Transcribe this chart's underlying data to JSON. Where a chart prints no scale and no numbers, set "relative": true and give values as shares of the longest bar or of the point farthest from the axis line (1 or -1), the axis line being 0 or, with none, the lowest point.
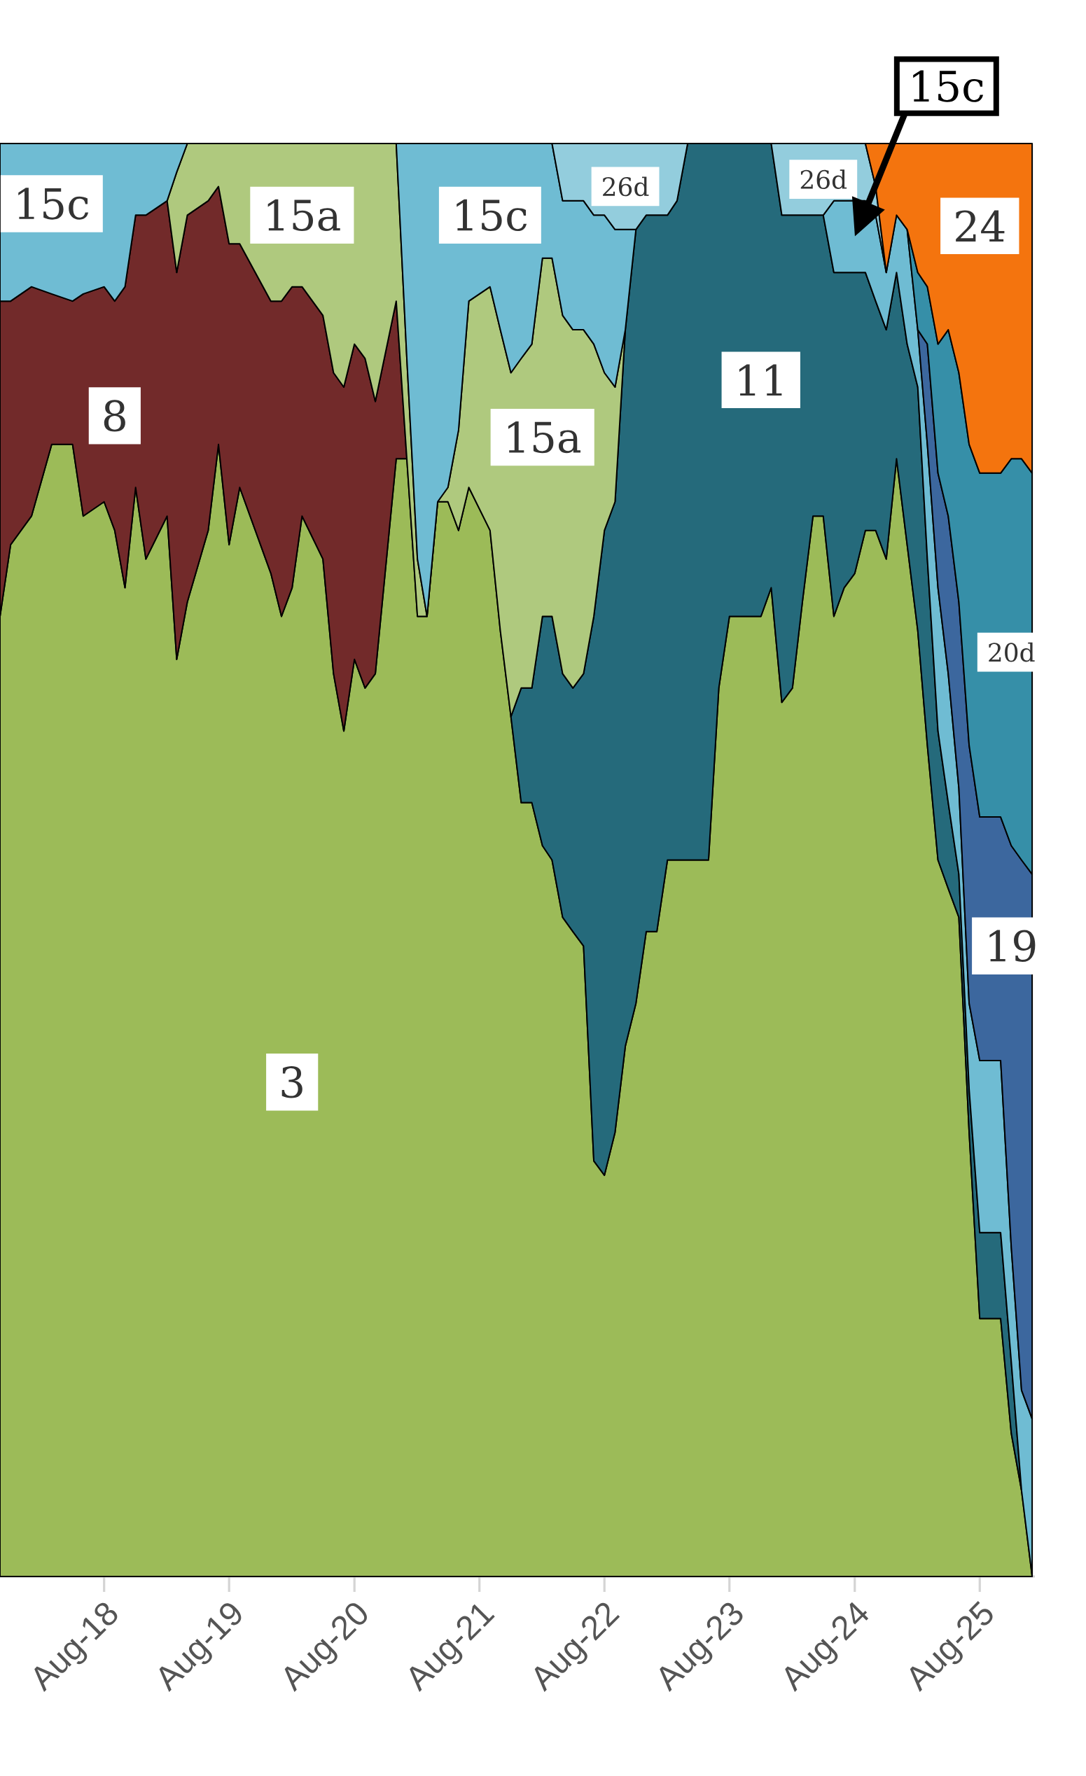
{
  "chart_data": {
    "type": "area",
    "stacked": true,
    "relative": true,
    "x": [
      "2017-10",
      "2017-11",
      "2018-01",
      "2018-03",
      "2018-05",
      "2018-06",
      "2018-08",
      "2018-09",
      "2018-10",
      "2018-11",
      "2018-12",
      "2019-02",
      "2019-03",
      "2019-04",
      "2019-06",
      "2019-07",
      "2019-08",
      "2019-09",
      "2019-12",
      "2020-01",
      "2020-02",
      "2020-03",
      "2020-05",
      "2020-06",
      "2020-07",
      "2020-08",
      "2020-09",
      "2020-10",
      "2020-12",
      "2021-01",
      "2021-02",
      "2021-03",
      "2021-04",
      "2021-05",
      "2021-06",
      "2021-07",
      "2021-09",
      "2021-10",
      "2021-11",
      "2021-12",
      "2022-01",
      "2022-02",
      "2022-03",
      "2022-04",
      "2022-05",
      "2022-06",
      "2022-07",
      "2022-08",
      "2022-09",
      "2022-10",
      "2022-11",
      "2022-12",
      "2023-01",
      "2023-02",
      "2023-03",
      "2023-04",
      "2023-06",
      "2023-07",
      "2023-08",
      "2023-11",
      "2023-12",
      "2024-01",
      "2024-02",
      "2024-03",
      "2024-04",
      "2024-05",
      "2024-06",
      "2024-07",
      "2024-08",
      "2024-09",
      "2024-10",
      "2024-11",
      "2024-12",
      "2025-01",
      "2025-02",
      "2025-03",
      "2025-04",
      "2025-05",
      "2025-06",
      "2025-07",
      "2025-08",
      "2025-10",
      "2025-11",
      "2025-12",
      "2026-01"
    ],
    "series": [
      {
        "name": "3",
        "color": "#9cbb58",
        "values": [
          0.67,
          0.72,
          0.74,
          0.79,
          0.79,
          0.74,
          0.75,
          0.73,
          0.69,
          0.76,
          0.71,
          0.74,
          0.64,
          0.68,
          0.73,
          0.79,
          0.72,
          0.76,
          0.7,
          0.67,
          0.69,
          0.74,
          0.71,
          0.63,
          0.59,
          0.64,
          0.62,
          0.63,
          0.78,
          0.78,
          0.67,
          0.67,
          0.75,
          0.75,
          0.73,
          0.76,
          0.73,
          0.66,
          0.6,
          0.54,
          0.54,
          0.51,
          0.5,
          0.46,
          0.45,
          0.44,
          0.29,
          0.28,
          0.31,
          0.37,
          0.4,
          0.45,
          0.45,
          0.5,
          0.5,
          0.5,
          0.5,
          0.62,
          0.67,
          0.67,
          0.69,
          0.61,
          0.62,
          0.68,
          0.74,
          0.74,
          0.67,
          0.69,
          0.7,
          0.73,
          0.73,
          0.71,
          0.78,
          0.72,
          0.66,
          0.58,
          0.5,
          0.48,
          0.46,
          0.31,
          0.18,
          0.18,
          0.1,
          0.06,
          0
        ]
      },
      {
        "name": "8",
        "color": "#722a2a",
        "values": [
          0.22,
          0.17,
          0.16,
          0.105,
          0.1,
          0.155,
          0.15,
          0.16,
          0.21,
          0.19,
          0.24,
          0.22,
          0.27,
          0.27,
          0.23,
          0.18,
          0.21,
          0.17,
          0.19,
          0.22,
          0.21,
          0.16,
          0.17,
          0.21,
          0.24,
          0.22,
          0.23,
          0.19,
          0.11,
          0,
          null,
          null,
          null,
          null,
          null,
          null,
          null,
          null,
          null,
          null,
          null,
          null,
          null,
          null,
          null,
          null,
          null,
          null,
          null,
          null,
          null,
          null,
          null,
          null,
          null,
          null,
          null,
          null,
          null,
          null,
          null,
          null,
          null,
          null,
          null,
          null,
          null,
          null,
          null,
          null,
          null,
          null,
          null,
          null,
          null,
          null,
          null,
          null,
          null,
          null,
          null,
          null,
          null,
          null,
          null
        ]
      },
      {
        "name": "11",
        "color": "#256a7b",
        "values": [
          null,
          null,
          null,
          null,
          null,
          null,
          null,
          null,
          null,
          null,
          null,
          null,
          null,
          null,
          null,
          null,
          null,
          null,
          null,
          null,
          null,
          null,
          null,
          null,
          null,
          null,
          null,
          null,
          null,
          null,
          null,
          null,
          null,
          null,
          null,
          null,
          null,
          null,
          0,
          0.08,
          0.08,
          0.16,
          0.17,
          0.17,
          0.17,
          0.19,
          0.38,
          0.45,
          0.44,
          0.5,
          0.54,
          0.5,
          0.5,
          0.45,
          0.46,
          0.5,
          0.5,
          0.38,
          0.33,
          0.33,
          0.31,
          0.34,
          0.33,
          0.27,
          0.21,
          0.21,
          0.24,
          0.22,
          0.21,
          0.18,
          0.16,
          0.16,
          0.13,
          0.14,
          0.17,
          0.13,
          0.09,
          0.06,
          0.03,
          0.03,
          0.06,
          0.06,
          0.05,
          0,
          null
        ]
      },
      {
        "name": "15a",
        "color": "#afc97e",
        "values": [
          null,
          null,
          null,
          null,
          null,
          null,
          null,
          null,
          null,
          null,
          null,
          0,
          0.07,
          0.05,
          0.04,
          0.03,
          0.07,
          0.07,
          0.11,
          0.11,
          0.1,
          0.1,
          0.12,
          0.16,
          0.17,
          0.14,
          0.15,
          0.18,
          0.11,
          0.07,
          0.04,
          0,
          0,
          0.01,
          0.07,
          0.13,
          0.17,
          0.21,
          0.24,
          0.23,
          0.24,
          0.25,
          0.25,
          0.25,
          0.25,
          0.24,
          0.19,
          0.11,
          0.08,
          0,
          null,
          null,
          null,
          null,
          null,
          null,
          null,
          null,
          null,
          null,
          null,
          null,
          null,
          null,
          null,
          null,
          null,
          null,
          null,
          null,
          null,
          null,
          null,
          null,
          null,
          null,
          null,
          null,
          null,
          null,
          null,
          null,
          null,
          null,
          null
        ]
      },
      {
        "name": "15c",
        "color": "#6fbcd3",
        "values": [
          0.11,
          0.11,
          0.1,
          0.105,
          0.11,
          0.105,
          0.1,
          0.11,
          0.1,
          0.05,
          0.05,
          0.04,
          0.02,
          0,
          null,
          null,
          null,
          null,
          null,
          null,
          null,
          null,
          null,
          null,
          null,
          null,
          null,
          null,
          0,
          0.15,
          0.29,
          0.33,
          0.25,
          0.24,
          0.2,
          0.11,
          0.1,
          0.13,
          0.16,
          0.15,
          0.14,
          0.08,
          0.08,
          0.08,
          0.09,
          0.09,
          0.09,
          0.11,
          0.11,
          0.07,
          0,
          null,
          null,
          null,
          null,
          null,
          null,
          null,
          null,
          null,
          null,
          null,
          null,
          null,
          null,
          0,
          0.05,
          0.05,
          0.05,
          0.05,
          0.06,
          0.04,
          0.04,
          0.08,
          0.04,
          0.08,
          0.1,
          0.09,
          0.06,
          0.06,
          0.12,
          0.12,
          0.08,
          0.07,
          0.11
        ]
      },
      {
        "name": "26d",
        "color": "#93cddd",
        "values": [
          null,
          null,
          null,
          null,
          null,
          null,
          null,
          null,
          null,
          null,
          null,
          null,
          null,
          null,
          null,
          null,
          null,
          null,
          null,
          null,
          null,
          null,
          null,
          null,
          null,
          null,
          null,
          null,
          null,
          null,
          null,
          null,
          null,
          null,
          null,
          null,
          null,
          null,
          null,
          null,
          null,
          null,
          0,
          0.04,
          0.04,
          0.04,
          0.05,
          0.05,
          0.06,
          0.06,
          0.06,
          0.05,
          0.05,
          0.05,
          0.04,
          0,
          null,
          null,
          null,
          null,
          0,
          0.05,
          0.05,
          0.05,
          0.05,
          0.05,
          0.04,
          0.04,
          0.04,
          0.04,
          0.02,
          0,
          null,
          null,
          null,
          null,
          null,
          null,
          null,
          null,
          null,
          null,
          null,
          null,
          null
        ]
      },
      {
        "name": "19",
        "color": "#3c679e",
        "values": [
          null,
          null,
          null,
          null,
          null,
          null,
          null,
          null,
          null,
          null,
          null,
          null,
          null,
          null,
          null,
          null,
          null,
          null,
          null,
          null,
          null,
          null,
          null,
          null,
          null,
          null,
          null,
          null,
          null,
          null,
          null,
          null,
          null,
          null,
          null,
          null,
          null,
          null,
          null,
          null,
          null,
          null,
          null,
          null,
          null,
          null,
          null,
          null,
          null,
          null,
          null,
          null,
          null,
          null,
          null,
          null,
          null,
          null,
          null,
          null,
          null,
          null,
          null,
          null,
          null,
          null,
          null,
          null,
          null,
          null,
          null,
          null,
          null,
          null,
          0,
          0.07,
          0.08,
          0.11,
          0.13,
          0.18,
          0.17,
          0.17,
          0.28,
          0.37,
          0.38
        ]
      },
      {
        "name": "20d",
        "color": "#368fa8",
        "values": [
          null,
          null,
          null,
          null,
          null,
          null,
          null,
          null,
          null,
          null,
          null,
          null,
          null,
          null,
          null,
          null,
          null,
          null,
          null,
          null,
          null,
          null,
          null,
          null,
          null,
          null,
          null,
          null,
          null,
          null,
          null,
          null,
          null,
          null,
          null,
          null,
          null,
          null,
          null,
          null,
          null,
          null,
          null,
          null,
          null,
          null,
          null,
          null,
          null,
          null,
          null,
          null,
          null,
          null,
          null,
          null,
          null,
          null,
          null,
          null,
          null,
          null,
          null,
          null,
          null,
          null,
          null,
          null,
          null,
          null,
          null,
          null,
          null,
          0,
          0.04,
          0.04,
          0.09,
          0.13,
          0.16,
          0.21,
          0.24,
          0.24,
          0.27,
          0.28,
          0.28
        ]
      },
      {
        "name": "24",
        "color": "#f4740e",
        "values": [
          null,
          null,
          null,
          null,
          null,
          null,
          null,
          null,
          null,
          null,
          null,
          null,
          null,
          null,
          null,
          null,
          null,
          null,
          null,
          null,
          null,
          null,
          null,
          null,
          null,
          null,
          null,
          null,
          null,
          null,
          null,
          null,
          null,
          null,
          null,
          null,
          null,
          null,
          null,
          null,
          null,
          null,
          null,
          null,
          null,
          null,
          null,
          null,
          null,
          null,
          null,
          null,
          null,
          null,
          null,
          null,
          null,
          null,
          null,
          null,
          null,
          null,
          null,
          null,
          null,
          null,
          null,
          null,
          null,
          0,
          0.03,
          0.09,
          0.05,
          0.06,
          0.09,
          0.1,
          0.14,
          0.13,
          0.16,
          0.21,
          0.23,
          0.23,
          0.22,
          0.22,
          0.23
        ]
      }
    ],
    "xlim": [
      "2017-10",
      "2026-01-09"
    ],
    "xticks": [
      {
        "value": "2018-08",
        "label": "Aug-18"
      },
      {
        "value": "2019-08",
        "label": "Aug-19"
      },
      {
        "value": "2020-08",
        "label": "Aug-20"
      },
      {
        "value": "2021-08",
        "label": "Aug-21"
      },
      {
        "value": "2022-08",
        "label": "Aug-22"
      },
      {
        "value": "2023-08",
        "label": "Aug-23"
      },
      {
        "value": "2024-08",
        "label": "Aug-24"
      },
      {
        "value": "2025-08",
        "label": "Aug-25"
      }
    ]
  }
}
